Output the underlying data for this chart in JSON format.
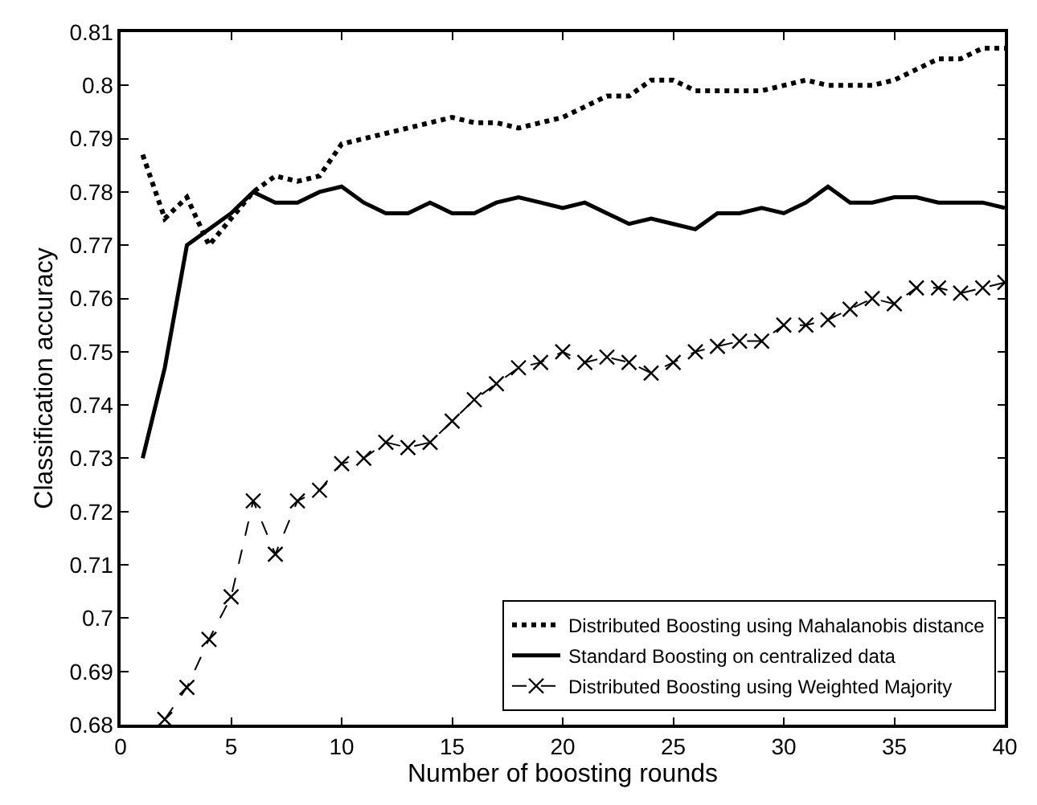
{
  "chart_data": {
    "type": "line",
    "xlabel": "Number of boosting rounds",
    "ylabel": "Classification accuracy",
    "xlim": [
      0,
      40
    ],
    "xticks": [
      0,
      5,
      10,
      15,
      20,
      25,
      30,
      35,
      40
    ],
    "ylim": [
      0.68,
      0.81
    ],
    "yticks": [
      0.68,
      0.69,
      0.7,
      0.71,
      0.72,
      0.73,
      0.74,
      0.75,
      0.76,
      0.77,
      0.78,
      0.79,
      0.8,
      0.81
    ],
    "legend": "bottom right",
    "series": [
      {
        "name": "Distributed Boosting using Mahalanobis distance",
        "color": "#000000",
        "line_style": "dotted",
        "marker": "none",
        "x": [
          1,
          2,
          3,
          4,
          5,
          6,
          7,
          8,
          9,
          10,
          11,
          12,
          13,
          14,
          15,
          16,
          17,
          18,
          19,
          20,
          21,
          22,
          23,
          24,
          25,
          26,
          27,
          28,
          29,
          30,
          31,
          32,
          33,
          34,
          35,
          36,
          37,
          38,
          39,
          40
        ],
        "values": [
          0.787,
          0.775,
          0.779,
          0.77,
          0.775,
          0.78,
          0.783,
          0.782,
          0.783,
          0.789,
          0.79,
          0.791,
          0.792,
          0.793,
          0.794,
          0.793,
          0.793,
          0.792,
          0.793,
          0.794,
          0.796,
          0.798,
          0.798,
          0.801,
          0.801,
          0.799,
          0.799,
          0.799,
          0.799,
          0.8,
          0.801,
          0.8,
          0.8,
          0.8,
          0.801,
          0.803,
          0.805,
          0.805,
          0.807,
          0.807
        ]
      },
      {
        "name": "Standard Boosting on centralized data",
        "color": "#000000",
        "line_style": "solid",
        "marker": "none",
        "x": [
          1,
          2,
          3,
          4,
          5,
          6,
          7,
          8,
          9,
          10,
          11,
          12,
          13,
          14,
          15,
          16,
          17,
          18,
          19,
          20,
          21,
          22,
          23,
          24,
          25,
          26,
          27,
          28,
          29,
          30,
          31,
          32,
          33,
          34,
          35,
          36,
          37,
          38,
          39,
          40
        ],
        "values": [
          0.73,
          0.747,
          0.77,
          0.773,
          0.776,
          0.78,
          0.778,
          0.778,
          0.78,
          0.781,
          0.778,
          0.776,
          0.776,
          0.778,
          0.776,
          0.776,
          0.778,
          0.779,
          0.778,
          0.777,
          0.778,
          0.776,
          0.774,
          0.775,
          0.774,
          0.773,
          0.776,
          0.776,
          0.777,
          0.776,
          0.778,
          0.781,
          0.778,
          0.778,
          0.779,
          0.779,
          0.778,
          0.778,
          0.778,
          0.777
        ]
      },
      {
        "name": "Distributed Boosting using Weighted Majority",
        "color": "#000000",
        "line_style": "dashed",
        "marker": "cross",
        "x": [
          2,
          3,
          4,
          5,
          6,
          7,
          8,
          9,
          10,
          11,
          12,
          13,
          14,
          15,
          16,
          17,
          18,
          19,
          20,
          21,
          22,
          23,
          24,
          25,
          26,
          27,
          28,
          29,
          30,
          31,
          32,
          33,
          34,
          35,
          36,
          37,
          38,
          39,
          40
        ],
        "values": [
          0.681,
          0.687,
          0.696,
          0.704,
          0.722,
          0.712,
          0.722,
          0.724,
          0.729,
          0.73,
          0.733,
          0.732,
          0.733,
          0.737,
          0.741,
          0.744,
          0.747,
          0.748,
          0.75,
          0.748,
          0.749,
          0.748,
          0.746,
          0.748,
          0.75,
          0.751,
          0.752,
          0.752,
          0.755,
          0.755,
          0.756,
          0.758,
          0.76,
          0.759,
          0.762,
          0.762,
          0.761,
          0.762,
          0.763
        ]
      }
    ]
  }
}
